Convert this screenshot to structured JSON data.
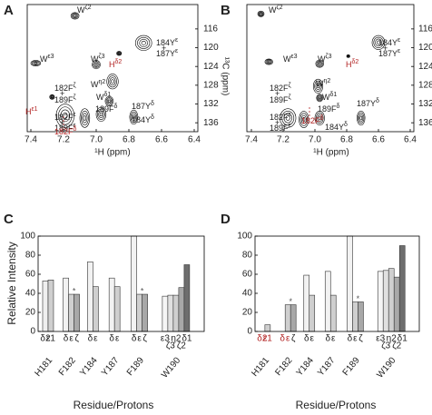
{
  "chart_data": [
    {
      "type": "contour",
      "panel_label": "A",
      "xlabel": "¹H (ppm)",
      "ylabel": "¹³C (ppm)",
      "xlim": [
        7.4,
        6.4
      ],
      "xticks": [
        7.4,
        7.2,
        {
          "value": 7,
          "label": "7.0"
        },
        6.8,
        6.6,
        6.4
      ],
      "ylim": [
        110.8,
        137.9
      ],
      "yticks": [
        116,
        120,
        124,
        128,
        132,
        136
      ],
      "peaks": [
        {
          "x": 7.13,
          "y": 113.2,
          "width": 0.05,
          "height": 1.4
        },
        {
          "x": 7.37,
          "y": 123.3,
          "width": 0.06,
          "height": 1.2
        },
        {
          "x": 7.0,
          "y": 123.6,
          "width": 0.05,
          "height": 1.8
        },
        {
          "x": 6.71,
          "y": 119,
          "width": 0.1,
          "height": 3.2
        },
        {
          "x": 6.86,
          "y": 121.2,
          "width": 0.03,
          "height": 0.9
        },
        {
          "x": 6.9,
          "y": 127.2,
          "width": 0.07,
          "height": 3.2
        },
        {
          "x": 6.92,
          "y": 131.4,
          "width": 0.05,
          "height": 2
        },
        {
          "x": 7.19,
          "y": 134.5,
          "width": 0.11,
          "height": 5
        },
        {
          "x": 7.07,
          "y": 135,
          "width": 0.06,
          "height": 4
        },
        {
          "x": 6.97,
          "y": 134.2,
          "width": 0.06,
          "height": 3
        },
        {
          "x": 6.77,
          "y": 134.8,
          "width": 0.05,
          "height": 3
        },
        {
          "x": 7.27,
          "y": 130.5,
          "width": 0.03,
          "height": 1
        }
      ],
      "annotations": [
        {
          "text": "W",
          "sup": "ζ2"
        },
        {
          "text": "W",
          "sup": "ε3"
        },
        {
          "text": "W",
          "sup": "ζ3"
        },
        {
          "text": "H",
          "sup": "δ2",
          "color": "#b22222"
        },
        {
          "text": "184Y",
          "sup": "ε"
        },
        {
          "text": "+"
        },
        {
          "text": "187Y",
          "sup": "ε"
        },
        {
          "text": "W",
          "sup": "η2"
        },
        {
          "text": "182F",
          "sup": "ζ"
        },
        {
          "text": "+"
        },
        {
          "text": "189F",
          "sup": "ζ"
        },
        {
          "text": "W",
          "sup": "δ1"
        },
        {
          "text": "189F",
          "sup": "δ"
        },
        {
          "text": "H",
          "sup": "ε1",
          "color": "#b22222"
        },
        {
          "text": "187Y",
          "sup": "δ"
        },
        {
          "text": "182F",
          "sup": "ε"
        },
        {
          "text": "+"
        },
        {
          "text": "189F",
          "sup": "ε"
        },
        {
          "text": "184Y",
          "sup": "δ"
        },
        {
          "text": "182F",
          "sup": "δ",
          "color": "#b22222"
        }
      ]
    },
    {
      "type": "contour",
      "panel_label": "B",
      "xlabel": "¹H (ppm)",
      "xlim": [
        7.4,
        6.4
      ],
      "xticks": [
        7.4,
        7.2,
        {
          "value": 7,
          "label": "7.0"
        },
        6.8,
        6.6,
        6.4
      ],
      "ylim": [
        110.8,
        137.9
      ],
      "yticks": [
        116,
        120,
        124,
        128,
        132,
        136
      ],
      "peaks": [
        {
          "x": 7.34,
          "y": 112.8,
          "width": 0.04,
          "height": 1.2
        },
        {
          "x": 7.29,
          "y": 123,
          "width": 0.05,
          "height": 1.2
        },
        {
          "x": 6.97,
          "y": 123.4,
          "width": 0.05,
          "height": 1.6
        },
        {
          "x": 6.6,
          "y": 118.9,
          "width": 0.08,
          "height": 3
        },
        {
          "x": 6.79,
          "y": 121.8,
          "width": 0.02,
          "height": 0.6
        },
        {
          "x": 6.98,
          "y": 128.2,
          "width": 0.06,
          "height": 3
        },
        {
          "x": 6.97,
          "y": 130.7,
          "width": 0.04,
          "height": 1.6
        },
        {
          "x": 7.17,
          "y": 135,
          "width": 0.1,
          "height": 4
        },
        {
          "x": 7.07,
          "y": 135.3,
          "width": 0.06,
          "height": 3.5
        },
        {
          "x": 6.97,
          "y": 135,
          "width": 0.06,
          "height": 3
        },
        {
          "x": 6.71,
          "y": 135,
          "width": 0.05,
          "height": 3
        }
      ],
      "annotations": [
        {
          "text": "W",
          "sup": "ζ2"
        },
        {
          "text": "W",
          "sup": "ε3"
        },
        {
          "text": "W",
          "sup": "ζ3"
        },
        {
          "text": "H",
          "sup": "δ2",
          "color": "#b22222"
        },
        {
          "text": "184Y",
          "sup": "ε"
        },
        {
          "text": "+"
        },
        {
          "text": "187Y",
          "sup": "ε"
        },
        {
          "text": "W",
          "sup": "η2"
        },
        {
          "text": "182F",
          "sup": "ζ"
        },
        {
          "text": "+"
        },
        {
          "text": "189F",
          "sup": "ζ"
        },
        {
          "text": "W",
          "sup": "δ1"
        },
        {
          "text": "189F",
          "sup": "δ"
        },
        {
          "text": "187Y",
          "sup": "δ"
        },
        {
          "text": "182F",
          "sup": "ε"
        },
        {
          "text": "+"
        },
        {
          "text": "189F",
          "sup": "ε"
        },
        {
          "text": "184Y",
          "sup": "δ"
        },
        {
          "text": "182F",
          "sup": "δ",
          "color": "#b22222"
        }
      ]
    },
    {
      "type": "bar",
      "panel_label": "C",
      "ylabel": "Relative Intensity",
      "xlabel": "Residue/Protons",
      "ylim": [
        0,
        100
      ],
      "yticks": [
        0,
        20,
        40,
        60,
        80,
        100
      ],
      "groups": [
        {
          "name": "H181",
          "protons": [
            "δ2",
            "ε1"
          ],
          "values": [
            53,
            54
          ],
          "colors": [
            "#efefef",
            "#cfcfcf"
          ]
        },
        {
          "name": "F182",
          "protons": [
            "δ",
            "ε",
            "ζ"
          ],
          "values": [
            56,
            39,
            39
          ],
          "colors": [
            "#f2f2f2",
            "#cfcfcf",
            "#a8a8a8"
          ],
          "note": {
            "text": "*",
            "proton": "ε"
          }
        },
        {
          "name": "Y184",
          "protons": [
            "δ",
            "ε"
          ],
          "values": [
            73,
            47
          ],
          "colors": [
            "#f2f2f2",
            "#cfcfcf"
          ]
        },
        {
          "name": "Y187",
          "protons": [
            "δ",
            "ε"
          ],
          "values": [
            56,
            47
          ],
          "colors": [
            "#f2f2f2",
            "#cfcfcf"
          ]
        },
        {
          "name": "F189",
          "protons": [
            "δ",
            "ε",
            "ζ"
          ],
          "values": [
            100,
            39,
            39
          ],
          "colors": [
            "#f2f2f2",
            "#cfcfcf",
            "#a8a8a8"
          ],
          "note": {
            "text": "*",
            "proton": "ε"
          }
        },
        {
          "name": "W190",
          "protons": [
            "ε3",
            "ζ3",
            "η2",
            "ζ2",
            "δ1"
          ],
          "values": [
            37,
            38,
            38,
            46,
            70
          ],
          "colors": [
            "#f5f5f5",
            "#e0e0e0",
            "#cfcfcf",
            "#a8a8a8",
            "#6e6e6e"
          ]
        }
      ]
    },
    {
      "type": "bar",
      "panel_label": "D",
      "xlabel": "Residue/Protons",
      "ylim": [
        0,
        100
      ],
      "yticks": [
        0,
        20,
        40,
        60,
        80,
        100
      ],
      "groups": [
        {
          "name": "H181",
          "protons": [
            "δ2",
            "ε1"
          ],
          "values": [
            null,
            7
          ],
          "colors": [
            "#efefef",
            "#cfcfcf"
          ],
          "label_colors": [
            "#b22222",
            "#b22222"
          ]
        },
        {
          "name": "F182",
          "protons": [
            "δ",
            "ε",
            "ζ"
          ],
          "values": [
            null,
            28,
            28
          ],
          "colors": [
            "#f2f2f2",
            "#cfcfcf",
            "#a8a8a8"
          ],
          "label_colors": [
            "#b22222",
            "#b22222",
            "#222"
          ],
          "note": {
            "text": "*",
            "proton": "ε"
          }
        },
        {
          "name": "Y184",
          "protons": [
            "δ",
            "ε"
          ],
          "values": [
            59,
            38
          ],
          "colors": [
            "#f2f2f2",
            "#cfcfcf"
          ]
        },
        {
          "name": "Y187",
          "protons": [
            "δ",
            "ε"
          ],
          "values": [
            63,
            38
          ],
          "colors": [
            "#f2f2f2",
            "#cfcfcf"
          ]
        },
        {
          "name": "F189",
          "protons": [
            "δ",
            "ε",
            "ζ"
          ],
          "values": [
            100,
            31,
            31
          ],
          "colors": [
            "#f2f2f2",
            "#cfcfcf",
            "#a8a8a8"
          ],
          "note": {
            "text": "*",
            "proton": "ε"
          }
        },
        {
          "name": "W190",
          "protons": [
            "ε3",
            "ζ3",
            "η2",
            "ζ2",
            "δ1"
          ],
          "values": [
            63,
            64,
            66,
            57,
            90
          ],
          "colors": [
            "#f5f5f5",
            "#e0e0e0",
            "#cfcfcf",
            "#a8a8a8",
            "#6e6e6e"
          ]
        }
      ]
    }
  ]
}
